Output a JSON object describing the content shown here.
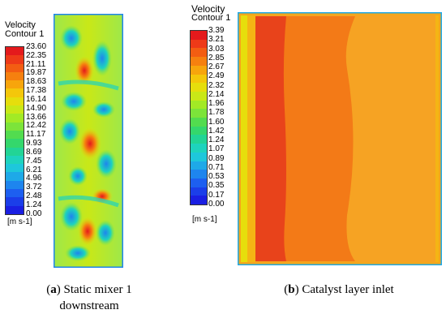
{
  "panel_a": {
    "legend_title_1": "Velocity",
    "legend_title_2": "Contour 1",
    "ticks": [
      "23.60",
      "22.35",
      "21.11",
      "19.87",
      "18.63",
      "17.38",
      "16.14",
      "14.90",
      "13.66",
      "12.42",
      "11.17",
      "9.93",
      "8.69",
      "7.45",
      "6.21",
      "4.96",
      "3.72",
      "2.48",
      "1.24",
      "0.00"
    ],
    "unit": "[m s-1]",
    "caption_letter": "a",
    "caption_line1": "Static mixer 1",
    "caption_line2": "downstream"
  },
  "panel_b": {
    "legend_title_1": "Velocity",
    "legend_title_2": "Contour 1",
    "ticks": [
      "3.39",
      "3.21",
      "3.03",
      "2.85",
      "2.67",
      "2.49",
      "2.32",
      "2.14",
      "1.96",
      "1.78",
      "1.60",
      "1.42",
      "1.24",
      "1.07",
      "0.89",
      "0.71",
      "0.53",
      "0.35",
      "0.17",
      "0.00"
    ],
    "unit": "[m s-1]",
    "caption_letter": "b",
    "caption_text": "Catalyst layer inlet"
  },
  "colors": {
    "scale": [
      "#e41a1c",
      "#ee3a18",
      "#f35d12",
      "#f6800f",
      "#f7a50c",
      "#f4c70a",
      "#e6de0c",
      "#c9e817",
      "#a2ea25",
      "#7ce43a",
      "#52dc4f",
      "#34d76c",
      "#22d495",
      "#1ed3bd",
      "#1ec7db",
      "#1ea9e8",
      "#1e85ee",
      "#1d5ff0",
      "#1b3ee9",
      "#1a1fe2"
    ]
  }
}
